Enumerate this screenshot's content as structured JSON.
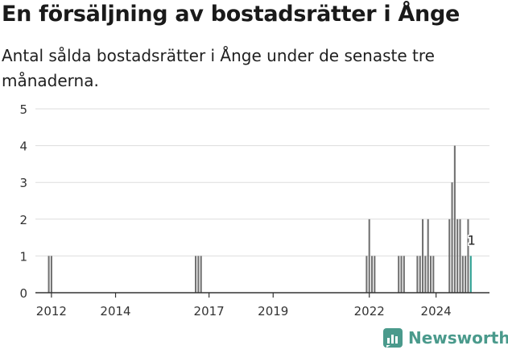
{
  "header": {
    "title": "En försäljning av bostadsrätter i Ånge",
    "subtitle": "Antal sålda bostadsrätter i Ånge under de senaste tre månaderna."
  },
  "brand": {
    "name": "Newsworthy",
    "icon": "newsworthy-logo-icon",
    "color": "#4a9a8c"
  },
  "colors": {
    "bar": "#707070",
    "highlight": "#2a9d8f",
    "grid": "#dddddd",
    "axis": "#333333"
  },
  "chart_data": {
    "type": "bar",
    "x_unit": "month",
    "xlim": [
      "2011-07",
      "2025-09"
    ],
    "ylim": [
      0,
      5
    ],
    "yticks": [
      0,
      1,
      2,
      3,
      4,
      5
    ],
    "xticks": [
      "2012",
      "2014",
      "2017",
      "2019",
      "2022",
      "2024"
    ],
    "xtick_positions": [
      "2012-01",
      "2014-01",
      "2016-12",
      "2018-12",
      "2021-12",
      "2024-01"
    ],
    "highlight_label": "1",
    "grid": "horizontal",
    "series": [
      {
        "values": [
          {
            "x": "2011-12",
            "y": 1
          },
          {
            "x": "2012-01",
            "y": 1
          },
          {
            "x": "2016-07",
            "y": 1
          },
          {
            "x": "2016-08",
            "y": 1
          },
          {
            "x": "2016-09",
            "y": 1
          },
          {
            "x": "2021-11",
            "y": 1
          },
          {
            "x": "2021-12",
            "y": 2
          },
          {
            "x": "2022-01",
            "y": 1
          },
          {
            "x": "2022-02",
            "y": 1
          },
          {
            "x": "2022-11",
            "y": 1
          },
          {
            "x": "2022-12",
            "y": 1
          },
          {
            "x": "2023-01",
            "y": 1
          },
          {
            "x": "2023-06",
            "y": 1
          },
          {
            "x": "2023-07",
            "y": 1
          },
          {
            "x": "2023-08",
            "y": 2
          },
          {
            "x": "2023-09",
            "y": 1
          },
          {
            "x": "2023-10",
            "y": 2
          },
          {
            "x": "2023-11",
            "y": 1
          },
          {
            "x": "2023-12",
            "y": 1
          },
          {
            "x": "2024-06",
            "y": 2
          },
          {
            "x": "2024-07",
            "y": 3
          },
          {
            "x": "2024-08",
            "y": 4
          },
          {
            "x": "2024-09",
            "y": 2
          },
          {
            "x": "2024-10",
            "y": 2
          },
          {
            "x": "2024-11",
            "y": 1
          },
          {
            "x": "2024-12",
            "y": 1
          },
          {
            "x": "2025-01",
            "y": 2
          },
          {
            "x": "2025-02",
            "y": 1,
            "highlight": true
          }
        ]
      }
    ]
  }
}
